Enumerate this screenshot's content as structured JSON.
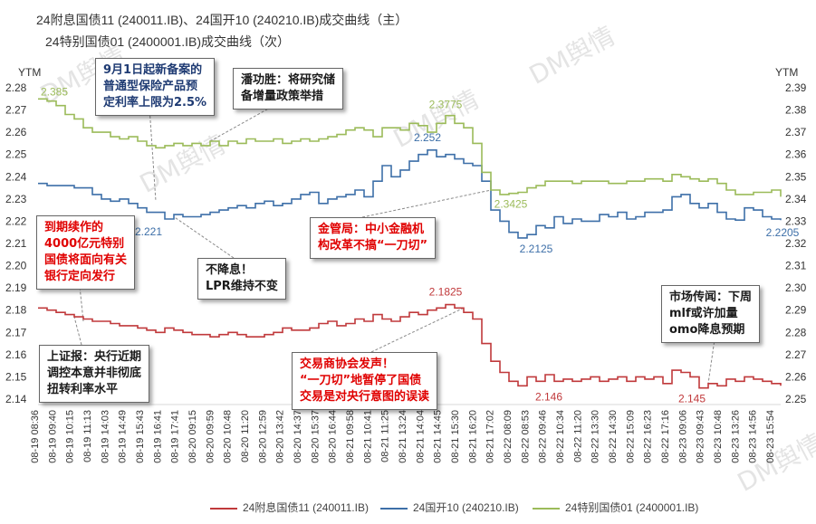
{
  "title_line1": "24附息国债11 (240011.IB)、24国开10 (240210.IB)成交曲线（主）",
  "title_line2": "24特别国债01 (2400001.IB)成交曲线（次）",
  "watermark_text": "DM舆情",
  "chart_data": {
    "type": "line",
    "left_axis": {
      "label": "YTM",
      "ylim": [
        2.14,
        2.28
      ],
      "ticks": [
        "2.14",
        "2.15",
        "2.16",
        "2.17",
        "2.18",
        "2.19",
        "2.20",
        "2.21",
        "2.22",
        "2.23",
        "2.24",
        "2.25",
        "2.26",
        "2.27",
        "2.28"
      ]
    },
    "right_axis": {
      "label": "YTM",
      "ylim": [
        2.25,
        2.39
      ],
      "ticks": [
        "2.25",
        "2.26",
        "2.27",
        "2.28",
        "2.29",
        "2.30",
        "2.31",
        "2.32",
        "2.33",
        "2.34",
        "2.35",
        "2.36",
        "2.37",
        "2.38",
        "2.39"
      ]
    },
    "x_labels": [
      "08-19 08:36",
      "08-19 09:40",
      "08-19 10:15",
      "08-19 11:13",
      "08-19 14:03",
      "08-19 14:49",
      "08-19 15:43",
      "08-19 16:41",
      "08-19 17:41",
      "08-20 09:15",
      "08-20 09:59",
      "08-20 10:48",
      "08-20 11:20",
      "08-20 12:59",
      "08-20 13:42",
      "08-20 14:37",
      "08-20 15:37",
      "08-20 16:44",
      "08-21 09:58",
      "08-21 10:41",
      "08-21 11:25",
      "08-21 13:24",
      "08-21 14:04",
      "08-21 14:45",
      "08-21 15:30",
      "08-21 16:20",
      "08-21 17:02",
      "08-22 08:09",
      "08-22 08:53",
      "08-22 09:46",
      "08-22 10:34",
      "08-22 11:20",
      "08-22 13:30",
      "08-22 14:30",
      "08-22 15:09",
      "08-22 16:23",
      "08-22 17:16",
      "08-23 09:06",
      "08-23 09:43",
      "08-23 10:48",
      "08-23 13:26",
      "08-23 14:56",
      "08-23 15:54"
    ],
    "series": [
      {
        "name": "24附息国债11 (240011.IB)",
        "axis": "left",
        "color": "#c0393b",
        "values": [
          2.181,
          2.18,
          2.179,
          2.178,
          2.177,
          2.176,
          2.175,
          2.175,
          2.174,
          2.173,
          2.173,
          2.172,
          2.171,
          2.17,
          2.172,
          2.171,
          2.17,
          2.169,
          2.169,
          2.168,
          2.169,
          2.17,
          2.169,
          2.168,
          2.168,
          2.169,
          2.17,
          2.172,
          2.171,
          2.171,
          2.172,
          2.174,
          2.175,
          2.173,
          2.174,
          2.176,
          2.175,
          2.178,
          2.176,
          2.175,
          2.177,
          2.179,
          2.178,
          2.18,
          2.181,
          2.1825,
          2.181,
          2.179,
          2.176,
          2.165,
          2.157,
          2.152,
          2.148,
          2.146,
          2.15,
          2.148,
          2.151,
          2.148,
          2.149,
          2.148,
          2.149,
          2.15,
          2.148,
          2.149,
          2.15,
          2.148,
          2.15,
          2.149,
          2.15,
          2.147,
          2.153,
          2.152,
          2.15,
          2.145,
          2.147,
          2.146,
          2.149,
          2.148,
          2.15,
          2.149,
          2.148,
          2.147,
          2.146
        ]
      },
      {
        "name": "24国开10 (240210.IB)",
        "axis": "left",
        "color": "#3d6fa8",
        "values": [
          2.237,
          2.236,
          2.236,
          2.236,
          2.235,
          2.235,
          2.232,
          2.23,
          2.229,
          2.23,
          2.228,
          2.226,
          2.224,
          2.224,
          2.221,
          2.223,
          2.222,
          2.222,
          2.223,
          2.224,
          2.225,
          2.226,
          2.227,
          2.226,
          2.228,
          2.229,
          2.227,
          2.228,
          2.23,
          2.232,
          2.233,
          2.228,
          2.23,
          2.231,
          2.232,
          2.234,
          2.231,
          2.238,
          2.245,
          2.24,
          2.243,
          2.247,
          2.25,
          2.252,
          2.249,
          2.25,
          2.248,
          2.246,
          2.245,
          2.238,
          2.225,
          2.22,
          2.215,
          2.2125,
          2.214,
          2.218,
          2.217,
          2.222,
          2.219,
          2.221,
          2.22,
          2.22,
          2.223,
          2.222,
          2.224,
          2.221,
          2.222,
          2.224,
          2.224,
          2.225,
          2.231,
          2.232,
          2.228,
          2.226,
          2.228,
          2.224,
          2.221,
          2.2205,
          2.226,
          2.225,
          2.222,
          2.221,
          2.2205
        ]
      },
      {
        "name": "24特别国债01 (2400001.IB)",
        "axis": "right",
        "color": "#9bbb59",
        "values": [
          2.385,
          2.384,
          2.382,
          2.378,
          2.376,
          2.372,
          2.37,
          2.37,
          2.368,
          2.367,
          2.368,
          2.366,
          2.364,
          2.363,
          2.364,
          2.365,
          2.364,
          2.365,
          2.364,
          2.366,
          2.364,
          2.366,
          2.365,
          2.367,
          2.366,
          2.366,
          2.367,
          2.365,
          2.366,
          2.367,
          2.366,
          2.367,
          2.368,
          2.369,
          2.371,
          2.372,
          2.371,
          2.368,
          2.372,
          2.372,
          2.371,
          2.374,
          2.373,
          2.37,
          2.374,
          2.3775,
          2.374,
          2.372,
          2.365,
          2.352,
          2.344,
          2.342,
          2.3425,
          2.343,
          2.345,
          2.346,
          2.348,
          2.348,
          2.348,
          2.347,
          2.348,
          2.348,
          2.348,
          2.347,
          2.347,
          2.348,
          2.348,
          2.349,
          2.349,
          2.348,
          2.351,
          2.35,
          2.349,
          2.348,
          2.349,
          2.347,
          2.344,
          2.342,
          2.342,
          2.343,
          2.343,
          2.344,
          2.341
        ]
      }
    ],
    "data_labels": [
      {
        "text": "2.385",
        "series": 2,
        "index": 0
      },
      {
        "text": "2.3775",
        "series": 2,
        "index": 45
      },
      {
        "text": "2.3425",
        "series": 2,
        "index": 52
      },
      {
        "text": "2.252",
        "series": 1,
        "index": 43
      },
      {
        "text": "2.221",
        "series": 1,
        "index": 14
      },
      {
        "text": "2.2125",
        "series": 1,
        "index": 53
      },
      {
        "text": "2.2205",
        "series": 1,
        "index": 82
      },
      {
        "text": "2.1825",
        "series": 0,
        "index": 45
      },
      {
        "text": "2.146",
        "series": 0,
        "index": 53
      },
      {
        "text": "2.145",
        "series": 0,
        "index": 73
      }
    ],
    "legend": [
      "24附息国债11 (240011.IB)",
      "24国开10 (240210.IB)",
      "24特别国债01 (2400001.IB)"
    ],
    "legend_position": "bottom",
    "grid": false
  },
  "callouts": [
    {
      "lines": [
        "9月1日起新备案的",
        "普通型保险产品预",
        "定利率上限为2.5%"
      ],
      "color": "navy",
      "points_to": 14
    },
    {
      "lines": [
        "潘功胜：将研究储",
        "备增量政策举措"
      ],
      "color": "dark",
      "points_to": 19
    },
    {
      "lines": [
        "到期续作的",
        "4000亿元特别",
        "国债将面向有关",
        "银行定向发行"
      ],
      "color": "red",
      "points_to": 11
    },
    {
      "lines": [
        "不降息！",
        "LPR维持不变"
      ],
      "color": "dark",
      "points_to": 15
    },
    {
      "lines": [
        "金管局：中小金融机",
        "构改革不搞“一刀切”"
      ],
      "color": "red",
      "points_to": 51
    },
    {
      "lines": [
        "上证报：央行近期",
        "调控本意并非彻底",
        "扭转利率水平"
      ],
      "color": "dark",
      "points_to": 6
    },
    {
      "lines": [
        "交易商协会发声！",
        "“一刀切”地暂停了国债",
        "交易是对央行意图的误读"
      ],
      "color": "red",
      "points_to": 50
    },
    {
      "lines": [
        "市场传闻：下周",
        "mlf或许加量",
        "omo降息预期"
      ],
      "color": "dark",
      "points_to": 74
    }
  ]
}
